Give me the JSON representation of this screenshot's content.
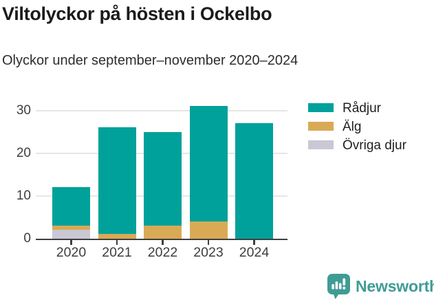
{
  "header": {
    "title": "Viltolyckor på hösten i Ockelbo",
    "subtitle": "Olyckor under september–november 2020–2024"
  },
  "chart_data": {
    "type": "bar",
    "stacked": true,
    "title": "Viltolyckor på hösten i Ockelbo",
    "subtitle": "Olyckor under september–november 2020–2024",
    "categories": [
      "2020",
      "2021",
      "2022",
      "2023",
      "2024"
    ],
    "series": [
      {
        "name": "Rådjur",
        "color": "#00A19A",
        "values": [
          9,
          25,
          22,
          27,
          27
        ]
      },
      {
        "name": "Älg",
        "color": "#D9AA55",
        "values": [
          1,
          1,
          3,
          4,
          0
        ]
      },
      {
        "name": "Övriga djur",
        "color": "#C9C8D4",
        "values": [
          2,
          0,
          0,
          0,
          0
        ]
      }
    ],
    "totals": [
      12,
      26,
      25,
      31,
      27
    ],
    "stack_order_bottom_to_top": [
      "Övriga djur",
      "Älg",
      "Rådjur"
    ],
    "yticks": [
      0,
      10,
      20,
      30
    ],
    "ylim": [
      0,
      32
    ],
    "xlabel": "",
    "ylabel": "",
    "grid": "horizontal",
    "legend_position": "right"
  },
  "footer": {
    "brand": "Newsworthy"
  },
  "colors": {
    "radjur_teal": "#00A19A",
    "alg_gold": "#D9AA55",
    "ovriga_gray": "#C9C8D4",
    "brand_teal": "#3F9C95",
    "axis_line": "#3F3F3F",
    "grid_line": "#E6E6E6",
    "text_dark": "#1B1B1B"
  }
}
